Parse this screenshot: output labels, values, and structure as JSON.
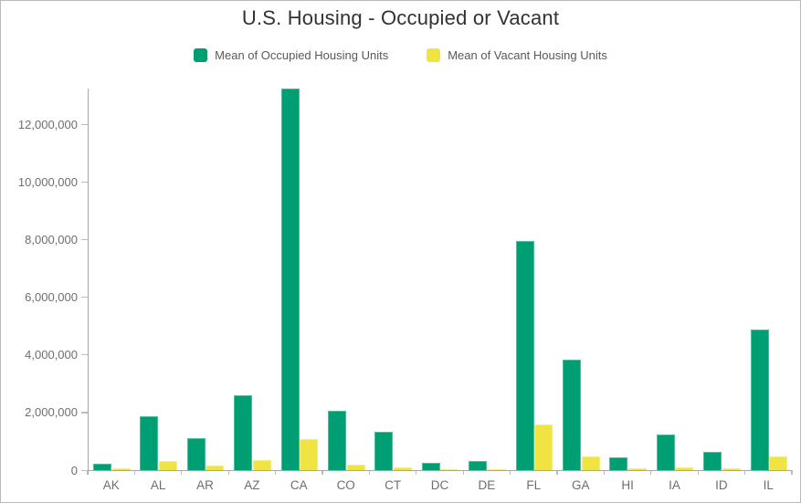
{
  "title": "U.S. Housing - Occupied or Vacant",
  "legend": [
    {
      "label": "Mean of Occupied Housing Units",
      "color": "#009E73"
    },
    {
      "label": "Mean of Vacant Housing Units",
      "color": "#F0E442"
    }
  ],
  "colors": {
    "occupied": "#009E73",
    "vacant": "#F0E442",
    "axis": "#a6a6a6",
    "tick": "#bdbdbd",
    "tick_text": "#6e6e6e",
    "legend_text": "#595959",
    "title_text": "#323232"
  },
  "chart_data": {
    "type": "bar",
    "title": "U.S. Housing - Occupied or Vacant",
    "categories": [
      "AK",
      "AL",
      "AR",
      "AZ",
      "CA",
      "CO",
      "CT",
      "DC",
      "DE",
      "FL",
      "GA",
      "HI",
      "IA",
      "ID",
      "IL"
    ],
    "series": [
      {
        "name": "Mean of Occupied Housing Units",
        "color": "#009E73",
        "values": [
          230000,
          1860000,
          1120000,
          2600000,
          13250000,
          2070000,
          1340000,
          250000,
          320000,
          7950000,
          3820000,
          440000,
          1240000,
          620000,
          4880000
        ]
      },
      {
        "name": "Mean of Vacant Housing Units",
        "color": "#F0E442",
        "values": [
          50000,
          330000,
          160000,
          350000,
          1080000,
          180000,
          100000,
          30000,
          45000,
          1600000,
          460000,
          60000,
          105000,
          70000,
          465000
        ]
      }
    ],
    "xlabel": "",
    "ylabel": "",
    "ylim": [
      0,
      13250000
    ],
    "yticks": [
      0,
      2000000,
      4000000,
      6000000,
      8000000,
      10000000,
      12000000
    ],
    "ytick_labels": [
      "0",
      "2,000,000",
      "4,000,000",
      "6,000,000",
      "8,000,000",
      "10,000,000",
      "12,000,000"
    ],
    "grid": false,
    "legend_position": "top"
  }
}
